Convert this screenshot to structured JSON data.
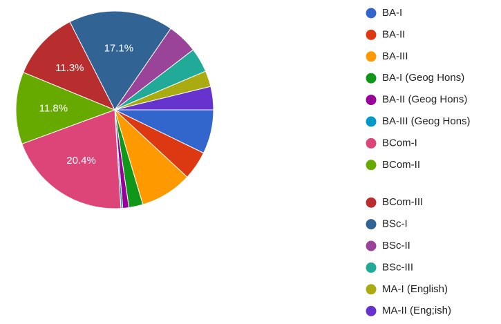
{
  "chart_data": {
    "type": "pie",
    "categories": [
      "BA-I",
      "BA-II",
      "BA-III",
      "BA-I (Geog Hons)",
      "BA-II (Geog Hons)",
      "BA-III (Geog Hons)",
      "BCom-I",
      "BCom-II",
      "BCom-III",
      "BSc-I",
      "BSc-II",
      "BSc-III",
      "MA-I (English)",
      "MA-II (Eng;ish)"
    ],
    "values": [
      7.2,
      4.7,
      8.5,
      2.3,
      1.0,
      0.3,
      20.4,
      11.8,
      11.3,
      17.1,
      5.0,
      4.0,
      2.6,
      3.8
    ],
    "value_labels": [
      null,
      null,
      null,
      null,
      null,
      null,
      "20.4%",
      "11.8%",
      "11.3%",
      "17.1%",
      null,
      null,
      null,
      null
    ],
    "colors": [
      "#3366cc",
      "#dc3912",
      "#ff9900",
      "#109618",
      "#990099",
      "#0099c6",
      "#dd4477",
      "#66aa00",
      "#b82e2e",
      "#316395",
      "#994499",
      "#22aa99",
      "#aaaa11",
      "#6633cc"
    ],
    "legend": "right"
  }
}
